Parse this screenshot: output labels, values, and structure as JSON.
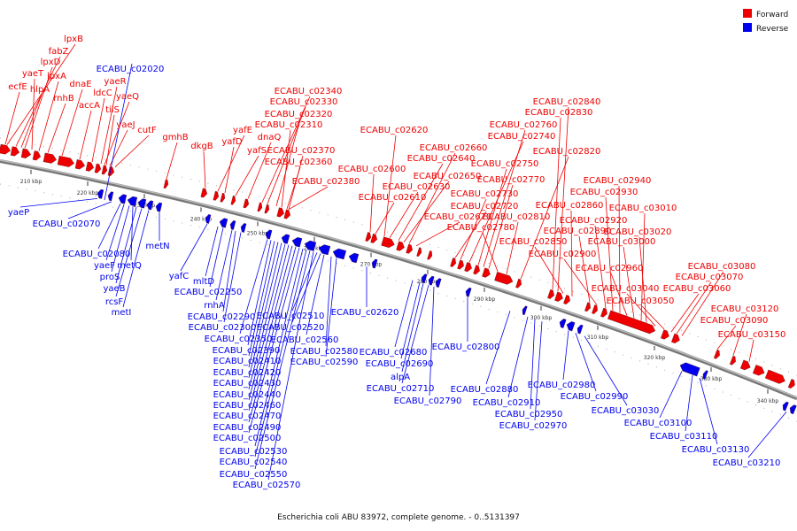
{
  "caption": "Escherichia coli ABU 83972, complete genome. - 0..5131397",
  "legend": [
    {
      "label": "Forward",
      "color": "#ee0000"
    },
    {
      "label": "Reverse",
      "color": "#0000ee"
    }
  ],
  "colors": {
    "forward": "#ee0000",
    "reverse": "#0000ee",
    "backbone": "#777777"
  },
  "ticks": [
    "210 kbp",
    "220 kbp",
    "230 kbp",
    "240 kbp",
    "250 kbp",
    "260 kbp",
    "270 kbp",
    "280 kbp",
    "290 kbp",
    "300 kbp",
    "310 kbp",
    "320 kbp",
    "330 kbp",
    "340 kbp"
  ],
  "forward_labels": [
    "lpxB",
    "fabZ",
    "lpxD",
    "yaeT",
    "lpxA",
    "ecfE",
    "hlpA",
    "rnhB",
    "dnaE",
    "accA",
    "ldcC",
    "yaeR",
    "yaeQ",
    "tilS",
    "yaeJ",
    "cutF",
    "gmhB",
    "dkgB",
    "yafE",
    "yafD",
    "yafS",
    "dnaQ",
    "ECABU_c02340",
    "ECABU_c02330",
    "ECABU_c02320",
    "ECABU_c02310",
    "ECABU_c02370",
    "ECABU_c02360",
    "ECABU_c02380",
    "ECABU_c02600",
    "ECABU_c02610",
    "ECABU_c02620",
    "ECABU_c02630",
    "ECABU_c02640",
    "ECABU_c02650",
    "ECABU_c02660",
    "ECABU_c02670",
    "ECABU_c02720",
    "ECABU_c02730",
    "ECABU_c02740",
    "ECABU_c02750",
    "ECABU_c02760",
    "ECABU_c02770",
    "ECABU_c02780",
    "ECABU_c02810",
    "ECABU_c02820",
    "ECABU_c02830",
    "ECABU_c02840",
    "ECABU_c02850",
    "ECABU_c02860",
    "ECABU_c02890",
    "ECABU_c02900",
    "ECABU_c02920",
    "ECABU_c02930",
    "ECABU_c02940",
    "ECABU_c02960",
    "ECABU_c03000",
    "ECABU_c03010",
    "ECABU_c03020",
    "ECABU_c03040",
    "ECABU_c03050",
    "ECABU_c03060",
    "ECABU_c03070",
    "ECABU_c03080",
    "ECABU_c03090",
    "ECABU_c03120",
    "ECABU_c03150"
  ],
  "reverse_labels": [
    "ECABU_c02020",
    "yaeP",
    "ECABU_c02070",
    "ECABU_c02080",
    "yaeF",
    "metQ",
    "proS",
    "yaeB",
    "rcsF",
    "metI",
    "metN",
    "yafC",
    "mltD",
    "ECABU_c02250",
    "rnhA",
    "ECABU_c02290",
    "ECABU_c02300",
    "ECABU_c02350",
    "ECABU_c02390",
    "ECABU_c02410",
    "ECABU_c02420",
    "ECABU_c02430",
    "ECABU_c02440",
    "ECABU_c02460",
    "ECABU_c02470",
    "ECABU_c02490",
    "ECABU_c02500",
    "ECABU_c02530",
    "ECABU_c02540",
    "ECABU_c02550",
    "ECABU_c02570",
    "ECABU_c02510",
    "ECABU_c02520",
    "ECABU_c02560",
    "ECABU_c02580",
    "ECABU_c02590",
    "ECABU_c02620",
    "ECABU_c02680",
    "ECABU_c02690",
    "alpA",
    "ECABU_c02710",
    "ECABU_c02790",
    "ECABU_c02800",
    "ECABU_c02880",
    "ECABU_c02910",
    "ECABU_c02950",
    "ECABU_c02970",
    "ECABU_c02980",
    "ECABU_c02990",
    "ECABU_c03030",
    "ECABU_c03100",
    "ECABU_c03110",
    "ECABU_c03130",
    "ECABU_c03210"
  ]
}
